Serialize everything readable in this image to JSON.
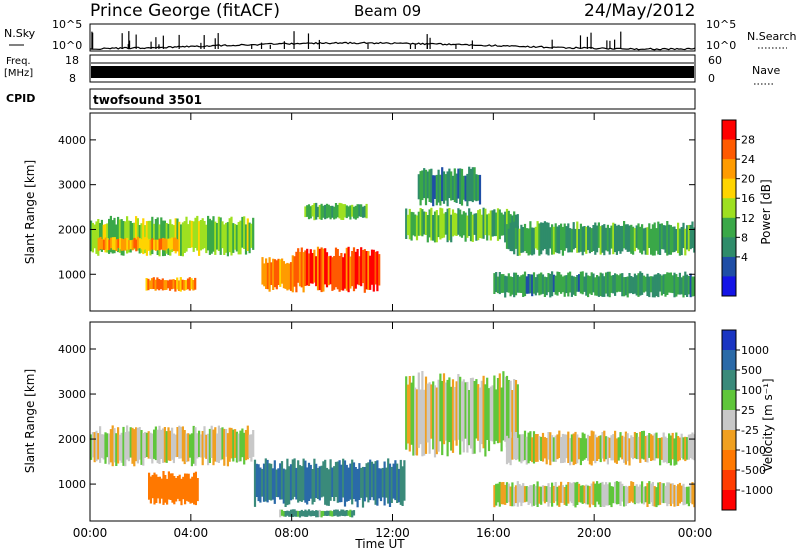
{
  "header": {
    "station": "Prince George (fitACF)",
    "beam": "Beam 09",
    "date": "24/May/2012"
  },
  "noise_panel": {
    "left_label": "N.Sky",
    "right_label": "N.Search",
    "ytick_top": "10^5",
    "ytick_bottom": "10^0"
  },
  "freq_panel": {
    "left_label_1": "Freq.",
    "left_label_2": "[MHz]",
    "right_label": "Nave",
    "left_tick_top": "18",
    "left_tick_bottom": "8",
    "right_tick_top": "60",
    "right_tick_bottom": "0"
  },
  "cpid": {
    "label": "CPID",
    "value": "twofsound 3501"
  },
  "xaxis": {
    "label": "Time UT",
    "ticks": [
      "00:00",
      "04:00",
      "08:00",
      "12:00",
      "16:00",
      "20:00",
      "00:00"
    ]
  },
  "power_panel": {
    "ylabel": "Slant Range [km]",
    "yticks": [
      "4000",
      "3000",
      "2000",
      "1000"
    ],
    "colorbar_label": "Power [dB]",
    "colorbar_ticks": [
      "28",
      "24",
      "20",
      "16",
      "12",
      "8",
      "4"
    ],
    "colorbar_colors": [
      "#ff0000",
      "#ff5a00",
      "#ff9b00",
      "#ffd400",
      "#9ee020",
      "#3aa848",
      "#2f8c6a",
      "#1f4ea6",
      "#1414e6"
    ]
  },
  "velocity_panel": {
    "ylabel": "Slant Range [km]",
    "yticks": [
      "4000",
      "3000",
      "2000",
      "1000"
    ],
    "colorbar_label": "Velocity [m s⁻¹]",
    "colorbar_ticks": [
      "1000",
      "500",
      "100",
      "25",
      "-25",
      "-100",
      "-500",
      "-1000"
    ],
    "colorbar_colors": [
      "#1a35c2",
      "#2a6aa8",
      "#3a8a7a",
      "#5fc63a",
      "#c8c8c8",
      "#f0a020",
      "#ff7800",
      "#ff3c00",
      "#ff0000"
    ]
  },
  "chart_data": {
    "type": "heatmap",
    "x_unit": "hours UT",
    "x_range": [
      0,
      24
    ],
    "y_range_km": [
      180,
      4600
    ],
    "power_regions": [
      {
        "t0": 0.0,
        "t1": 6.5,
        "r0": 1500,
        "r1": 2200,
        "level": 14
      },
      {
        "t0": 0.3,
        "t1": 3.5,
        "r0": 1550,
        "r1": 1800,
        "level": 22
      },
      {
        "t0": 2.2,
        "t1": 4.2,
        "r0": 650,
        "r1": 900,
        "level": 24
      },
      {
        "t0": 6.8,
        "t1": 8.0,
        "r0": 700,
        "r1": 1300,
        "level": 24
      },
      {
        "t0": 8.0,
        "t1": 11.5,
        "r0": 700,
        "r1": 1500,
        "level": 27
      },
      {
        "t0": 8.5,
        "t1": 11.0,
        "r0": 2250,
        "r1": 2550,
        "level": 12
      },
      {
        "t0": 12.5,
        "t1": 17.0,
        "r0": 1800,
        "r1": 2400,
        "level": 12
      },
      {
        "t0": 13.0,
        "t1": 15.5,
        "r0": 2600,
        "r1": 3300,
        "level": 8
      },
      {
        "t0": 16.5,
        "t1": 24.0,
        "r0": 1500,
        "r1": 2100,
        "level": 10
      },
      {
        "t0": 16.0,
        "t1": 24.0,
        "r0": 550,
        "r1": 1000,
        "level": 9
      }
    ],
    "velocity_regions": [
      {
        "t0": 0.0,
        "t1": 6.5,
        "r0": 1500,
        "r1": 2200,
        "vel": 0
      },
      {
        "t0": 2.3,
        "t1": 4.3,
        "r0": 600,
        "r1": 1200,
        "vel": -300
      },
      {
        "t0": 6.5,
        "t1": 12.5,
        "r0": 600,
        "r1": 1450,
        "vel": 300
      },
      {
        "t0": 7.5,
        "t1": 10.5,
        "r0": 280,
        "r1": 420,
        "vel": 80
      },
      {
        "t0": 12.5,
        "t1": 17.0,
        "r0": 1800,
        "r1": 3300,
        "vel": 0
      },
      {
        "t0": 16.5,
        "t1": 24.0,
        "r0": 1500,
        "r1": 2100,
        "vel": 0
      },
      {
        "t0": 16.0,
        "t1": 24.0,
        "r0": 550,
        "r1": 1000,
        "vel": 0
      }
    ]
  }
}
